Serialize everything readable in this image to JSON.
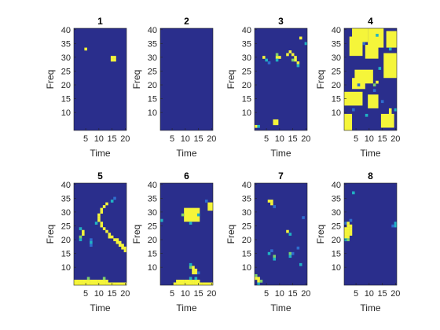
{
  "colors": {
    "background": "#2a2e8c",
    "low": "#2a2e8c",
    "mid_low": "#2f6ecf",
    "mid": "#20b2c4",
    "mid_high": "#7ecf6a",
    "high": "#f5f53a",
    "axis": "#262626"
  },
  "chart_data": [
    {
      "type": "heatmap",
      "title": "1",
      "xlabel": "Time",
      "ylabel": "Freq",
      "xlim": [
        1,
        20
      ],
      "ylim": [
        4,
        40
      ],
      "xticks": [
        5,
        10,
        15,
        20
      ],
      "yticks": [
        10,
        15,
        20,
        25,
        30,
        35,
        40
      ],
      "background_value": 0,
      "cells": [
        [
          5,
          33,
          1
        ],
        [
          15,
          30,
          1
        ],
        [
          16,
          30,
          1
        ],
        [
          15,
          29,
          1
        ],
        [
          16,
          29,
          1
        ]
      ]
    },
    {
      "type": "heatmap",
      "title": "2",
      "xlabel": "Time",
      "ylabel": "Freq",
      "xlim": [
        1,
        20
      ],
      "ylim": [
        4,
        40
      ],
      "xticks": [
        5,
        10,
        15,
        20
      ],
      "yticks": [
        10,
        15,
        20,
        25,
        30,
        35,
        40
      ],
      "background_value": 0,
      "cells": []
    },
    {
      "type": "heatmap",
      "title": "3",
      "xlabel": "Time",
      "ylabel": "Freq",
      "xlim": [
        1,
        20
      ],
      "ylim": [
        4,
        40
      ],
      "xticks": [
        5,
        10,
        15,
        20
      ],
      "yticks": [
        10,
        15,
        20,
        25,
        30,
        35,
        40
      ],
      "background_value": 0,
      "cells": [
        [
          4,
          30,
          0.9
        ],
        [
          5,
          29,
          0.5
        ],
        [
          6,
          28,
          0.4
        ],
        [
          9,
          30,
          1
        ],
        [
          9,
          31,
          0.8
        ],
        [
          10,
          30,
          0.9
        ],
        [
          9,
          29,
          0.5
        ],
        [
          13,
          31,
          0.9
        ],
        [
          14,
          32,
          1
        ],
        [
          15,
          31,
          1
        ],
        [
          16,
          30,
          1
        ],
        [
          16,
          29,
          1
        ],
        [
          17,
          28,
          1
        ],
        [
          15,
          29,
          0.8
        ],
        [
          17,
          27,
          0.6
        ],
        [
          18,
          37,
          0.9
        ],
        [
          20,
          35,
          0.6
        ],
        [
          8,
          6,
          1
        ],
        [
          9,
          6,
          1
        ],
        [
          8,
          7,
          1
        ],
        [
          9,
          7,
          1
        ],
        [
          1,
          5,
          1
        ],
        [
          2,
          5,
          0.5
        ]
      ]
    },
    {
      "type": "heatmap",
      "title": "4",
      "xlabel": "Time",
      "ylabel": "Freq",
      "xlim": [
        1,
        20
      ],
      "ylim": [
        4,
        40
      ],
      "xticks": [
        5,
        10,
        15,
        20
      ],
      "yticks": [
        10,
        15,
        20,
        25,
        30,
        35,
        40
      ],
      "background_value": 0,
      "rects": [
        [
          4,
          9,
          36,
          41,
          1
        ],
        [
          3,
          7,
          31,
          37,
          1
        ],
        [
          10,
          15,
          34,
          40,
          1
        ],
        [
          9,
          13,
          30,
          34,
          1
        ],
        [
          17,
          21,
          34,
          39,
          1
        ],
        [
          16,
          21,
          23,
          31,
          1
        ],
        [
          5,
          11,
          21,
          25,
          1
        ],
        [
          4,
          8,
          19,
          22,
          1
        ],
        [
          10,
          13,
          12,
          16,
          1
        ],
        [
          1,
          7,
          13,
          17,
          1
        ],
        [
          1,
          3,
          4,
          9,
          1
        ],
        [
          15,
          19,
          5,
          9,
          1
        ]
      ],
      "cells": [
        [
          8,
          35,
          0.4
        ],
        [
          13,
          38,
          0.6
        ],
        [
          18,
          33,
          0.5
        ],
        [
          6,
          20,
          0.4
        ],
        [
          12,
          18,
          0.3
        ],
        [
          14,
          26,
          0.5
        ],
        [
          4,
          11,
          0.4
        ],
        [
          9,
          9,
          0.5
        ],
        [
          12,
          20,
          0.8
        ],
        [
          13,
          21,
          0.9
        ],
        [
          15,
          14,
          0.4
        ],
        [
          20,
          11,
          0.6
        ],
        [
          18,
          11,
          1
        ],
        [
          18,
          10,
          1
        ]
      ]
    },
    {
      "type": "heatmap",
      "title": "5",
      "xlabel": "Time",
      "ylabel": "Freq",
      "xlim": [
        1,
        20
      ],
      "ylim": [
        4,
        40
      ],
      "xticks": [
        5,
        10,
        15,
        20
      ],
      "yticks": [
        10,
        15,
        20,
        25,
        30,
        35,
        40
      ],
      "background_value": 0,
      "cells": [
        [
          13,
          33,
          1
        ],
        [
          12,
          32,
          1
        ],
        [
          11,
          31,
          1
        ],
        [
          11,
          30,
          1
        ],
        [
          10,
          29,
          1
        ],
        [
          10,
          28,
          1
        ],
        [
          10,
          27,
          1
        ],
        [
          11,
          26,
          1
        ],
        [
          11,
          25,
          1
        ],
        [
          12,
          24,
          1
        ],
        [
          13,
          23,
          1
        ],
        [
          14,
          22,
          1
        ],
        [
          15,
          21,
          1
        ],
        [
          16,
          20,
          1
        ],
        [
          17,
          19,
          1
        ],
        [
          18,
          18,
          1
        ],
        [
          19,
          17,
          1
        ],
        [
          20,
          16,
          1
        ],
        [
          14,
          21,
          1
        ],
        [
          17,
          20,
          1
        ],
        [
          19,
          18,
          1
        ],
        [
          18,
          19,
          1
        ],
        [
          20,
          17,
          1
        ],
        [
          15,
          34,
          0.6
        ],
        [
          16,
          35,
          0.4
        ],
        [
          9,
          26,
          0.5
        ],
        [
          3,
          24,
          0.6
        ],
        [
          4,
          23,
          0.9
        ],
        [
          4,
          22,
          1
        ],
        [
          3,
          21,
          0.7
        ],
        [
          3,
          20,
          0.5
        ],
        [
          7,
          20,
          0.4
        ],
        [
          7,
          19,
          0.5
        ],
        [
          7,
          18,
          0.4
        ],
        [
          1,
          5,
          1
        ],
        [
          2,
          5,
          1
        ],
        [
          3,
          5,
          1
        ],
        [
          4,
          5,
          1
        ],
        [
          5,
          5,
          1
        ],
        [
          6,
          5,
          1
        ],
        [
          7,
          5,
          1
        ],
        [
          8,
          5,
          1
        ],
        [
          9,
          5,
          1
        ],
        [
          10,
          5,
          1
        ],
        [
          11,
          5,
          1
        ],
        [
          12,
          5,
          1
        ],
        [
          13,
          5,
          1
        ],
        [
          1,
          4,
          1
        ],
        [
          2,
          4,
          1
        ],
        [
          3,
          4,
          1
        ],
        [
          4,
          4,
          1
        ],
        [
          5,
          4,
          1
        ],
        [
          6,
          4,
          1
        ],
        [
          7,
          4,
          1
        ],
        [
          8,
          4,
          1
        ],
        [
          9,
          4,
          1
        ],
        [
          10,
          4,
          1
        ],
        [
          11,
          4,
          1
        ],
        [
          12,
          4,
          1
        ],
        [
          13,
          4,
          1
        ],
        [
          14,
          4,
          1
        ],
        [
          15,
          4,
          1
        ],
        [
          16,
          4,
          1
        ],
        [
          17,
          4,
          1
        ],
        [
          18,
          4,
          1
        ],
        [
          19,
          4,
          1
        ],
        [
          20,
          4,
          1
        ],
        [
          6,
          6,
          0.8
        ],
        [
          12,
          6,
          0.7
        ]
      ]
    },
    {
      "type": "heatmap",
      "title": "6",
      "xlabel": "Time",
      "ylabel": "Freq",
      "xlim": [
        1,
        20
      ],
      "ylim": [
        4,
        40
      ],
      "xticks": [
        5,
        10,
        15,
        20
      ],
      "yticks": [
        10,
        15,
        20,
        25,
        30,
        35,
        40
      ],
      "background_value": 0,
      "rects": [
        [
          10,
          15,
          27,
          31,
          1
        ],
        [
          19,
          21,
          31,
          33,
          1
        ]
      ],
      "cells": [
        [
          9,
          29,
          0.8
        ],
        [
          15,
          29,
          0.6
        ],
        [
          12,
          26,
          0.5
        ],
        [
          1,
          27,
          0.5
        ],
        [
          18,
          34,
          0.4
        ],
        [
          12,
          10,
          0.8
        ],
        [
          13,
          10,
          1
        ],
        [
          13,
          9,
          1
        ],
        [
          14,
          9,
          1
        ],
        [
          13,
          8,
          1
        ],
        [
          14,
          8,
          0.9
        ],
        [
          12,
          11,
          0.5
        ],
        [
          15,
          8,
          0.4
        ],
        [
          7,
          5,
          1
        ],
        [
          8,
          5,
          1
        ],
        [
          9,
          5,
          1
        ],
        [
          10,
          5,
          1
        ],
        [
          11,
          5,
          1
        ],
        [
          12,
          5,
          1
        ],
        [
          13,
          5,
          1
        ],
        [
          14,
          5,
          1
        ],
        [
          15,
          5,
          1
        ],
        [
          6,
          4,
          1
        ],
        [
          7,
          4,
          1
        ],
        [
          8,
          4,
          1
        ],
        [
          9,
          4,
          1
        ],
        [
          10,
          4,
          1
        ],
        [
          11,
          4,
          1
        ],
        [
          12,
          4,
          1
        ],
        [
          13,
          4,
          1
        ],
        [
          14,
          4,
          1
        ],
        [
          15,
          4,
          1
        ],
        [
          16,
          4,
          1
        ],
        [
          17,
          4,
          1
        ],
        [
          18,
          4,
          1
        ],
        [
          19,
          4,
          1
        ],
        [
          20,
          4,
          1
        ],
        [
          12,
          6,
          0.6
        ],
        [
          14,
          6,
          0.5
        ]
      ]
    },
    {
      "type": "heatmap",
      "title": "7",
      "xlabel": "Time",
      "ylabel": "Freq",
      "xlim": [
        1,
        20
      ],
      "ylim": [
        4,
        40
      ],
      "xticks": [
        5,
        10,
        15,
        20
      ],
      "yticks": [
        10,
        15,
        20,
        25,
        30,
        35,
        40
      ],
      "background_value": 0,
      "cells": [
        [
          6,
          34,
          1
        ],
        [
          7,
          34,
          1
        ],
        [
          7,
          33,
          0.9
        ],
        [
          8,
          32,
          0.4
        ],
        [
          19,
          28,
          0.3
        ],
        [
          13,
          23,
          0.9
        ],
        [
          14,
          22,
          0.6
        ],
        [
          17,
          17,
          0.4
        ],
        [
          14,
          15,
          0.8
        ],
        [
          14,
          14,
          0.6
        ],
        [
          15,
          15,
          0.4
        ],
        [
          7,
          16,
          0.4
        ],
        [
          6,
          15,
          0.5
        ],
        [
          8,
          14,
          0.7
        ],
        [
          8,
          13,
          0.5
        ],
        [
          18,
          11,
          0.5
        ],
        [
          1,
          7,
          0.8
        ],
        [
          1,
          6,
          1
        ],
        [
          2,
          6,
          1
        ],
        [
          2,
          5,
          1
        ],
        [
          3,
          5,
          0.8
        ],
        [
          2,
          4,
          0.6
        ]
      ]
    },
    {
      "type": "heatmap",
      "title": "8",
      "xlabel": "Time",
      "ylabel": "Freq",
      "xlim": [
        1,
        20
      ],
      "ylim": [
        4,
        40
      ],
      "xticks": [
        5,
        10,
        15,
        20
      ],
      "yticks": [
        10,
        15,
        20,
        25,
        30,
        35,
        40
      ],
      "background_value": 0,
      "cells": [
        [
          1,
          26,
          0.4
        ],
        [
          2,
          26,
          0.9
        ],
        [
          2,
          25,
          1
        ],
        [
          3,
          25,
          1
        ],
        [
          1,
          24,
          1
        ],
        [
          2,
          24,
          1
        ],
        [
          3,
          24,
          1
        ],
        [
          1,
          23,
          1
        ],
        [
          2,
          23,
          1
        ],
        [
          3,
          23,
          1
        ],
        [
          1,
          22,
          1
        ],
        [
          2,
          22,
          1
        ],
        [
          3,
          22,
          0.9
        ],
        [
          1,
          21,
          1
        ],
        [
          2,
          21,
          1
        ],
        [
          2,
          20,
          0.8
        ],
        [
          1,
          20,
          0.5
        ],
        [
          3,
          27,
          0.3
        ],
        [
          4,
          37,
          0.5
        ],
        [
          20,
          26,
          0.6
        ],
        [
          20,
          25,
          0.5
        ],
        [
          19,
          25,
          0.3
        ]
      ]
    }
  ]
}
